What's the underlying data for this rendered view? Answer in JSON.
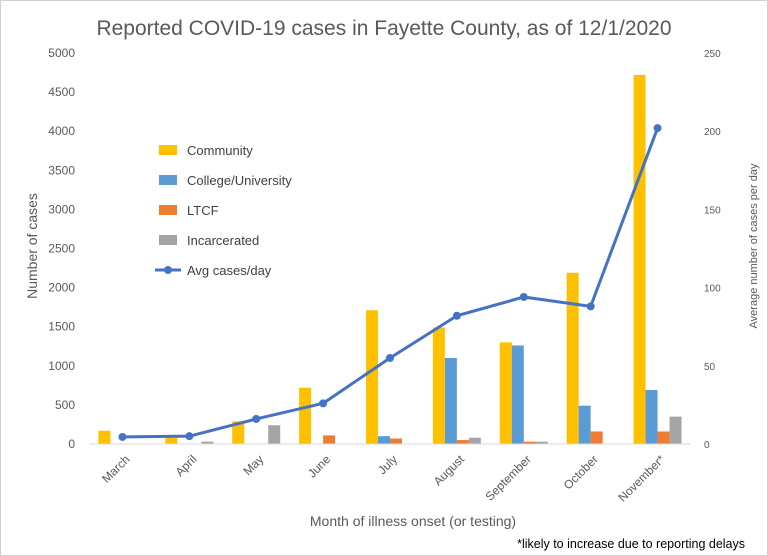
{
  "chart_data": {
    "type": "bar",
    "title": "Reported COVID-19 cases in Fayette County, as of 12/1/2020",
    "xlabel": "Month of illness onset (or testing)",
    "ylabel": "Number of cases",
    "y2label": "Average number of cases per day",
    "ylim": [
      0,
      5000
    ],
    "y2lim": [
      0,
      250
    ],
    "yticks": [
      0,
      500,
      1000,
      1500,
      2000,
      2500,
      3000,
      3500,
      4000,
      4500,
      5000
    ],
    "y2ticks": [
      0,
      50,
      100,
      150,
      200,
      250
    ],
    "grid": false,
    "legend_position": "upper-left",
    "categories": [
      "March",
      "April",
      "May",
      "June",
      "July",
      "August",
      "September",
      "October",
      "November*"
    ],
    "series": [
      {
        "name": "Community",
        "kind": "bar",
        "axis": "left",
        "color": "#FFC000",
        "values": [
          170,
          80,
          290,
          720,
          1710,
          1490,
          1300,
          2190,
          4720
        ]
      },
      {
        "name": "College/University",
        "kind": "bar",
        "axis": "left",
        "color": "#5B9BD5",
        "values": [
          0,
          0,
          0,
          0,
          100,
          1100,
          1260,
          490,
          690
        ]
      },
      {
        "name": "LTCF",
        "kind": "bar",
        "axis": "left",
        "color": "#ED7D31",
        "values": [
          0,
          0,
          0,
          110,
          70,
          50,
          30,
          160,
          160
        ]
      },
      {
        "name": "Incarcerated",
        "kind": "bar",
        "axis": "left",
        "color": "#A5A5A5",
        "values": [
          0,
          30,
          240,
          0,
          0,
          80,
          30,
          0,
          350
        ]
      },
      {
        "name": "Avg cases/day",
        "kind": "line",
        "axis": "right",
        "color": "#4472C4",
        "values": [
          4.5,
          5,
          16,
          26,
          55,
          82,
          94,
          88,
          202
        ]
      }
    ],
    "note": "*likely to increase due to reporting delays"
  }
}
